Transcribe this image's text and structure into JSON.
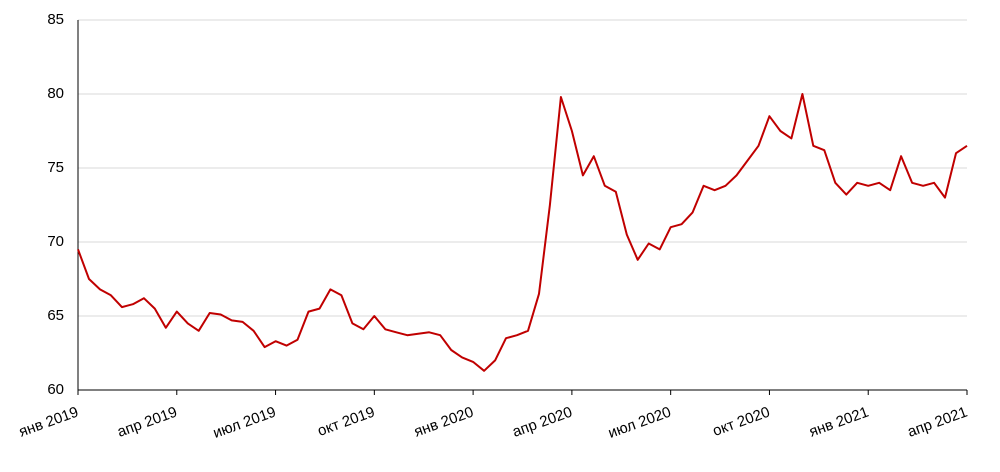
{
  "chart_data": {
    "type": "line",
    "categories": [
      "янв 2019",
      null,
      null,
      null,
      null,
      null,
      null,
      null,
      null,
      "апр 2019",
      null,
      null,
      null,
      null,
      null,
      null,
      null,
      null,
      "июл 2019",
      null,
      null,
      null,
      null,
      null,
      null,
      null,
      null,
      "окт 2019",
      null,
      null,
      null,
      null,
      null,
      null,
      null,
      null,
      "янв 2020",
      null,
      null,
      null,
      null,
      null,
      null,
      null,
      null,
      "апр 2020",
      null,
      null,
      null,
      null,
      null,
      null,
      null,
      null,
      "июл 2020",
      null,
      null,
      null,
      null,
      null,
      null,
      null,
      null,
      "окт 2020",
      null,
      null,
      null,
      null,
      null,
      null,
      null,
      null,
      "янв 2021",
      null,
      null,
      null,
      null,
      null,
      null,
      null,
      null,
      "апр 2021"
    ],
    "series": [
      {
        "color": "#c00000",
        "values": [
          69.5,
          67.5,
          66.8,
          66.4,
          65.6,
          65.8,
          66.2,
          65.5,
          64.2,
          65.3,
          64.5,
          64.0,
          65.2,
          65.1,
          64.7,
          64.6,
          64.0,
          62.9,
          63.3,
          63.0,
          63.4,
          65.3,
          65.5,
          66.8,
          66.4,
          64.5,
          64.1,
          65.0,
          64.1,
          63.9,
          63.7,
          63.8,
          63.9,
          63.7,
          62.7,
          62.2,
          61.9,
          61.3,
          62.0,
          63.5,
          63.7,
          64.0,
          66.5,
          72.5,
          79.8,
          77.5,
          74.5,
          75.8,
          73.8,
          73.4,
          70.5,
          68.8,
          69.9,
          69.5,
          71.0,
          71.2,
          72.0,
          73.8,
          73.5,
          73.8,
          74.5,
          75.5,
          76.5,
          78.5,
          77.5,
          77.0,
          80.0,
          76.5,
          76.2,
          74.0,
          73.2,
          74.0,
          73.8,
          74.0,
          73.5,
          75.8,
          74.0,
          73.8,
          74.0,
          73.0,
          76.0,
          76.5
        ]
      }
    ],
    "ylim": [
      60,
      85
    ],
    "yticks": [
      60,
      65,
      70,
      75,
      80,
      85
    ],
    "grid": true
  }
}
